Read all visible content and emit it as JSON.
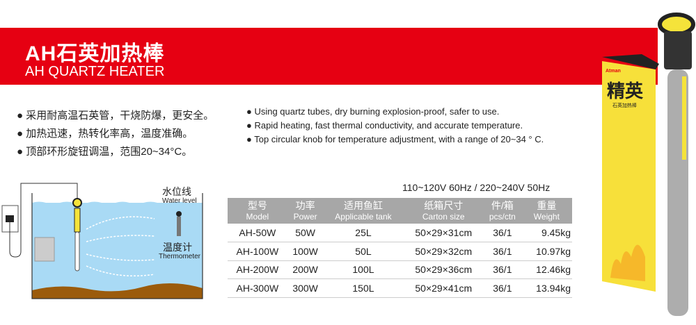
{
  "title": {
    "cn": "AH石英加热棒",
    "en": "AH QUARTZ HEATER"
  },
  "features_cn": [
    "● 采用耐高温石英管，干烧防爆，更安全。",
    "● 加热迅速，热转化率高，温度准确。",
    "● 顶部环形旋钮调温，范围20~34°C。"
  ],
  "features_en": [
    "● Using quartz tubes, dry burning explosion-proof, safer to use.",
    "● Rapid heating, fast thermal conductivity, and accurate temperature.",
    "● Top circular knob for temperature adjustment, with a range of 20~34 ° C."
  ],
  "diagram": {
    "water_level_cn": "水位线",
    "water_level_en": "Water level",
    "thermometer_cn": "温度计",
    "thermometer_en": "Thermometer"
  },
  "voltage": "110~120V 60Hz / 220~240V 50Hz",
  "table": {
    "headers": [
      {
        "cn": "型号",
        "en": "Model"
      },
      {
        "cn": "功率",
        "en": "Power"
      },
      {
        "cn": "适用鱼缸",
        "en": "Applicable tank"
      },
      {
        "cn": "纸箱尺寸",
        "en": "Carton size"
      },
      {
        "cn": "件/箱",
        "en": "pcs/ctn"
      },
      {
        "cn": "重量",
        "en": "Weight"
      }
    ],
    "rows": [
      [
        "AH-50W",
        "50W",
        "25L",
        "50×29×31cm",
        "36/1",
        "9.45kg"
      ],
      [
        "AH-100W",
        "100W",
        "50L",
        "50×29×32cm",
        "36/1",
        "10.97kg"
      ],
      [
        "AH-200W",
        "200W",
        "100L",
        "50×29×36cm",
        "36/1",
        "12.46kg"
      ],
      [
        "AH-300W",
        "300W",
        "150L",
        "50×29×41cm",
        "36/1",
        "13.94kg"
      ]
    ]
  },
  "product": {
    "box_brand": "Atman",
    "box_title": "精英",
    "box_subtitle": "石英加热棒"
  },
  "colors": {
    "banner": "#e60012",
    "header": "#a7a7a7",
    "water": "#a9daf5",
    "accent": "#f5e33a"
  }
}
